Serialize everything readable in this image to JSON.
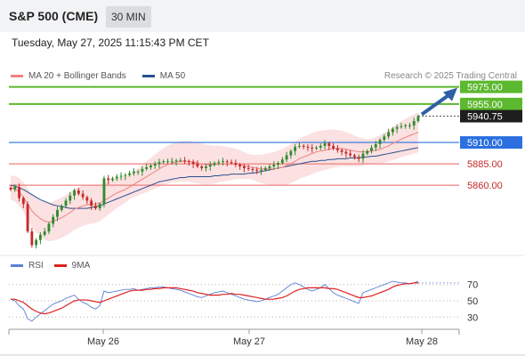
{
  "header": {
    "title": "S&P 500 (CME)",
    "timeframe": "30 MIN"
  },
  "datetime": "Tuesday, May 27, 2025 11:15:43 PM CET",
  "legend": {
    "items": [
      {
        "label": "MA 20 + Bollinger Bands",
        "color": "#f08080"
      },
      {
        "label": "MA 50",
        "color": "#2c4f8f"
      }
    ]
  },
  "copyright": "Research © 2025 Trading Central",
  "rsi_legend": {
    "items": [
      {
        "label": "RSI",
        "color": "#5b7fd4"
      },
      {
        "label": "9MA",
        "color": "#e02020"
      }
    ]
  },
  "colors": {
    "up": "#2e8b2e",
    "down": "#c62828",
    "resistance": "#5cb82e",
    "current": "#1e1e1e",
    "pivot": "#2b6fe0",
    "support": "#f08080",
    "arrow": "#2d5fa5"
  },
  "chart_data": [
    {
      "type": "candlestick",
      "title": "S&P 500 (CME)",
      "x_ticks": [
        "May 26",
        "May 27",
        "May 28"
      ],
      "ylim": [
        5780,
        5985
      ],
      "levels": [
        {
          "value": 5975.0,
          "label": "5975.00",
          "kind": "resistance"
        },
        {
          "value": 5955.0,
          "label": "5955.00",
          "kind": "resistance"
        },
        {
          "value": 5940.75,
          "label": "5940.75",
          "kind": "current"
        },
        {
          "value": 5910.0,
          "label": "5910.00",
          "kind": "pivot"
        },
        {
          "value": 5885.0,
          "label": "5885.00",
          "kind": "support"
        },
        {
          "value": 5860.0,
          "label": "5860.00",
          "kind": "support"
        }
      ],
      "candles_close": [
        5855,
        5858,
        5845,
        5838,
        5806,
        5790,
        5796,
        5802,
        5806,
        5815,
        5823,
        5831,
        5836,
        5842,
        5848,
        5854,
        5850,
        5846,
        5842,
        5836,
        5833,
        5838,
        5868,
        5866,
        5868,
        5870,
        5871,
        5872,
        5874,
        5876,
        5876,
        5879,
        5881,
        5883,
        5885,
        5887,
        5888,
        5888,
        5888,
        5889,
        5889,
        5888,
        5887,
        5885,
        5882,
        5880,
        5882,
        5884,
        5886,
        5887,
        5888,
        5887,
        5886,
        5884,
        5882,
        5880,
        5879,
        5878,
        5877,
        5878,
        5880,
        5882,
        5884,
        5886,
        5890,
        5895,
        5900,
        5905,
        5906,
        5905,
        5904,
        5903,
        5904,
        5906,
        5909,
        5906,
        5903,
        5901,
        5899,
        5897,
        5895,
        5893,
        5891,
        5897,
        5900,
        5904,
        5908,
        5913,
        5917,
        5922,
        5926,
        5928,
        5929,
        5930,
        5930,
        5935,
        5940.75
      ],
      "ma20": [
        5857,
        5856,
        5852,
        5846,
        5838,
        5830,
        5825,
        5821,
        5818,
        5817,
        5818,
        5820,
        5822,
        5825,
        5828,
        5832,
        5834,
        5836,
        5837,
        5838,
        5838,
        5839,
        5842,
        5845,
        5848,
        5851,
        5853,
        5855,
        5858,
        5861,
        5864,
        5867,
        5870,
        5873,
        5876,
        5879,
        5882,
        5884,
        5886,
        5887,
        5888,
        5888,
        5888,
        5887,
        5886,
        5885,
        5884,
        5884,
        5884,
        5885,
        5885,
        5885,
        5885,
        5885,
        5884,
        5883,
        5882,
        5881,
        5880,
        5879,
        5879,
        5879,
        5879,
        5880,
        5881,
        5883,
        5885,
        5888,
        5891,
        5893,
        5895,
        5897,
        5899,
        5900,
        5901,
        5902,
        5903,
        5903,
        5903,
        5902,
        5901,
        5900,
        5899,
        5899,
        5899,
        5900,
        5901,
        5902,
        5904,
        5906,
        5909,
        5911,
        5914,
        5916,
        5918,
        5920,
        5922
      ],
      "ma50": [
        5860,
        5859,
        5857,
        5855,
        5852,
        5849,
        5846,
        5843,
        5841,
        5839,
        5837,
        5836,
        5835,
        5834,
        5833,
        5833,
        5833,
        5833,
        5833,
        5834,
        5835,
        5836,
        5838,
        5840,
        5842,
        5844,
        5846,
        5848,
        5850,
        5852,
        5854,
        5856,
        5858,
        5860,
        5862,
        5864,
        5865,
        5866,
        5867,
        5868,
        5869,
        5869,
        5870,
        5870,
        5870,
        5870,
        5870,
        5870,
        5871,
        5871,
        5872,
        5872,
        5873,
        5873,
        5873,
        5873,
        5874,
        5874,
        5875,
        5876,
        5877,
        5878,
        5879,
        5880,
        5881,
        5882,
        5883,
        5884,
        5885,
        5886,
        5887,
        5888,
        5888,
        5889,
        5889,
        5890,
        5890,
        5891,
        5891,
        5891,
        5892,
        5892,
        5892,
        5893,
        5893,
        5894,
        5894,
        5895,
        5896,
        5897,
        5898,
        5899,
        5900,
        5901,
        5902,
        5903,
        5904
      ],
      "series": [
        {
          "name": "MA 20 + Bollinger Bands",
          "color": "#f08080"
        },
        {
          "name": "MA 50",
          "color": "#2c4f8f"
        }
      ]
    },
    {
      "type": "line",
      "title": "RSI",
      "y_ticks": [
        70,
        50,
        30
      ],
      "ylim": [
        15,
        85
      ],
      "series": [
        {
          "name": "RSI",
          "color": "#5b7fd4",
          "values": [
            52,
            50,
            44,
            40,
            28,
            25,
            30,
            34,
            38,
            42,
            46,
            48,
            50,
            53,
            55,
            57,
            52,
            48,
            46,
            42,
            40,
            44,
            62,
            60,
            61,
            62,
            63,
            64,
            64,
            65,
            63,
            64,
            65,
            66,
            66,
            67,
            67,
            66,
            65,
            64,
            63,
            61,
            59,
            57,
            55,
            54,
            56,
            58,
            60,
            61,
            62,
            60,
            58,
            56,
            54,
            52,
            51,
            50,
            49,
            50,
            52,
            54,
            56,
            58,
            62,
            66,
            70,
            72,
            70,
            67,
            64,
            62,
            64,
            66,
            70,
            65,
            60,
            57,
            55,
            53,
            51,
            49,
            47,
            60,
            62,
            64,
            66,
            68,
            70,
            72,
            74,
            73,
            72,
            72,
            71,
            72,
            74
          ]
        },
        {
          "name": "9MA",
          "color": "#e02020",
          "values": [
            52,
            52,
            50,
            48,
            44,
            40,
            37,
            35,
            34,
            35,
            37,
            39,
            41,
            44,
            47,
            50,
            51,
            51,
            51,
            50,
            49,
            48,
            50,
            52,
            54,
            56,
            58,
            60,
            62,
            63,
            63,
            63,
            64,
            64,
            65,
            65,
            66,
            66,
            66,
            66,
            65,
            64,
            63,
            62,
            60,
            59,
            58,
            57,
            57,
            57,
            58,
            58,
            59,
            58,
            58,
            57,
            56,
            55,
            54,
            53,
            52,
            52,
            52,
            53,
            54,
            56,
            59,
            62,
            64,
            65,
            66,
            66,
            66,
            66,
            66,
            65,
            65,
            64,
            62,
            60,
            58,
            56,
            54,
            54,
            55,
            56,
            58,
            60,
            62,
            64,
            67,
            69,
            70,
            71,
            71,
            72,
            72
          ]
        }
      ]
    }
  ]
}
